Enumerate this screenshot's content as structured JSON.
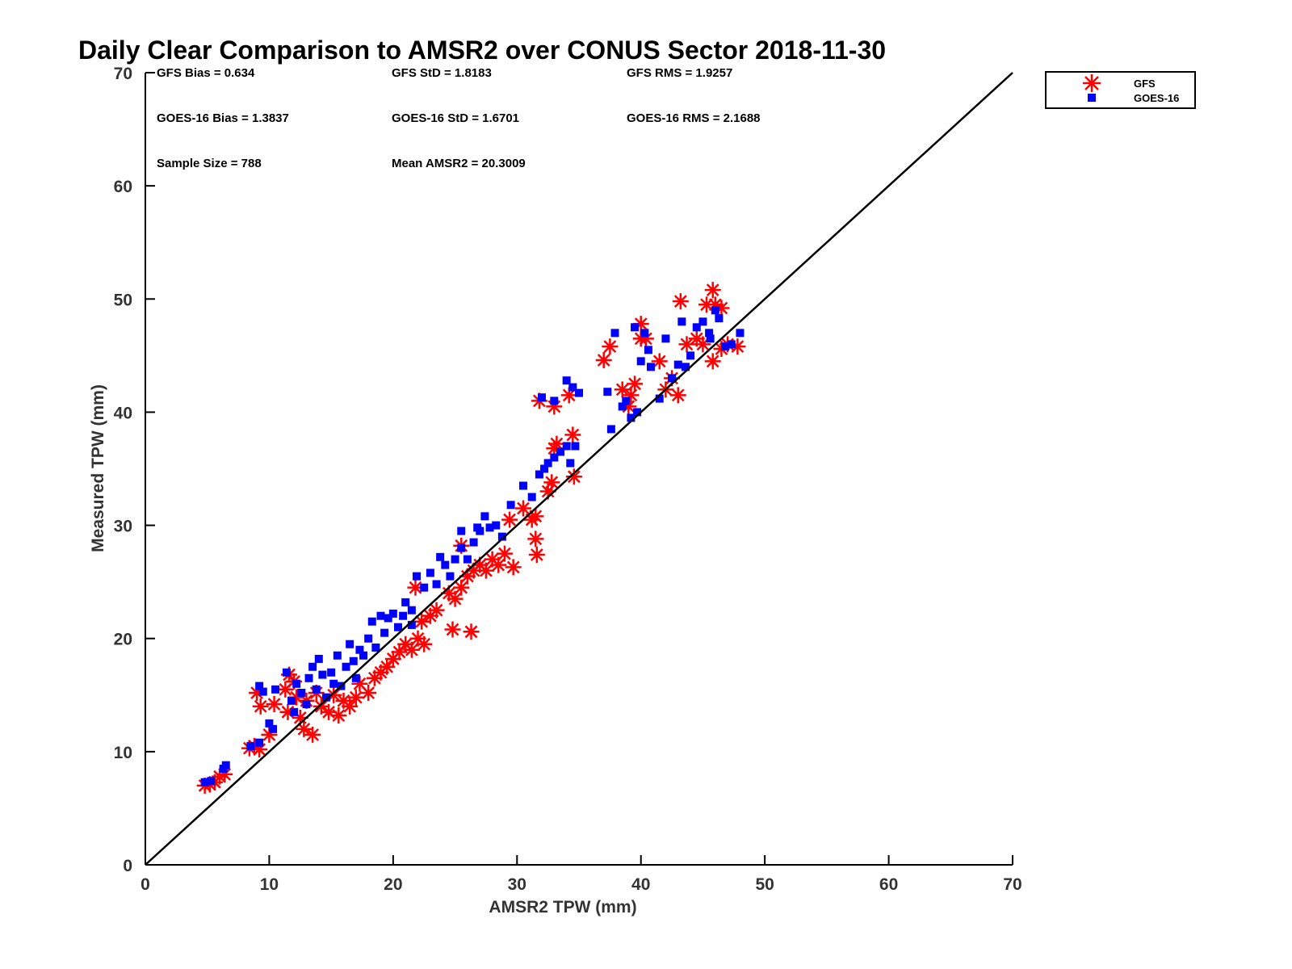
{
  "chart_data": {
    "type": "scatter",
    "title": "Daily Clear Comparison to AMSR2 over CONUS Sector 2018-11-30",
    "xlabel": "AMSR2 TPW (mm)",
    "ylabel": "Measured TPW (mm)",
    "xlim": [
      0,
      70
    ],
    "ylim": [
      0,
      70
    ],
    "xticks": [
      "0",
      "10",
      "20",
      "30",
      "40",
      "50",
      "60",
      "70"
    ],
    "yticks": [
      "0",
      "10",
      "20",
      "30",
      "40",
      "50",
      "60",
      "70"
    ],
    "grid": false,
    "reference_line": {
      "from": [
        0,
        0
      ],
      "to": [
        70,
        70
      ],
      "color": "#000000"
    },
    "legend_position": "outside-top-right",
    "stats": {
      "gfs_bias": "GFS Bias = 0.634",
      "gfs_std": "GFS StD = 1.8183",
      "gfs_rms": "GFS RMS = 1.9257",
      "goes_bias": "GOES-16 Bias = 1.3837",
      "goes_std": "GOES-16 StD = 1.6701",
      "goes_rms": "GOES-16 RMS = 2.1688",
      "sample_size": "Sample Size = 788",
      "mean_amsr2": "Mean AMSR2 = 20.3009"
    },
    "series": [
      {
        "name": "GFS",
        "marker": "asterisk",
        "color": "#ff0000",
        "points": [
          [
            4.8,
            7.0
          ],
          [
            5.2,
            7.1
          ],
          [
            5.6,
            7.3
          ],
          [
            6.0,
            7.8
          ],
          [
            6.4,
            8.0
          ],
          [
            8.4,
            10.3
          ],
          [
            8.8,
            10.5
          ],
          [
            9.2,
            10.2
          ],
          [
            9.0,
            15.2
          ],
          [
            9.3,
            14.0
          ],
          [
            10.0,
            11.5
          ],
          [
            10.4,
            14.2
          ],
          [
            11.3,
            15.5
          ],
          [
            11.6,
            16.8
          ],
          [
            12.0,
            16.2
          ],
          [
            11.5,
            13.5
          ],
          [
            12.2,
            14.8
          ],
          [
            12.5,
            13.0
          ],
          [
            12.8,
            12.0
          ],
          [
            13.5,
            11.5
          ],
          [
            13.0,
            14.5
          ],
          [
            13.8,
            15.2
          ],
          [
            14.2,
            14.0
          ],
          [
            14.8,
            13.5
          ],
          [
            15.2,
            15.0
          ],
          [
            15.6,
            13.2
          ],
          [
            16.0,
            14.5
          ],
          [
            16.5,
            14.0
          ],
          [
            17.0,
            14.8
          ],
          [
            17.3,
            16.0
          ],
          [
            18.0,
            15.2
          ],
          [
            18.5,
            16.5
          ],
          [
            19.0,
            17.0
          ],
          [
            19.5,
            17.5
          ],
          [
            20.0,
            18.2
          ],
          [
            20.5,
            18.8
          ],
          [
            21.0,
            19.5
          ],
          [
            21.5,
            19.0
          ],
          [
            22.0,
            20.0
          ],
          [
            22.5,
            19.5
          ],
          [
            22.3,
            21.5
          ],
          [
            23.0,
            22.0
          ],
          [
            23.5,
            22.5
          ],
          [
            21.8,
            24.5
          ],
          [
            24.5,
            24.0
          ],
          [
            25.0,
            23.5
          ],
          [
            24.8,
            20.8
          ],
          [
            26.3,
            20.6
          ],
          [
            25.5,
            24.5
          ],
          [
            26.0,
            25.5
          ],
          [
            26.5,
            26.0
          ],
          [
            27.0,
            26.5
          ],
          [
            27.5,
            26.0
          ],
          [
            28.0,
            27.0
          ],
          [
            28.5,
            26.5
          ],
          [
            29.7,
            26.3
          ],
          [
            29.0,
            27.5
          ],
          [
            25.5,
            28.2
          ],
          [
            29.4,
            30.5
          ],
          [
            30.5,
            31.5
          ],
          [
            31.2,
            30.5
          ],
          [
            31.5,
            28.8
          ],
          [
            31.6,
            27.4
          ],
          [
            31.5,
            30.8
          ],
          [
            32.5,
            33.0
          ],
          [
            32.8,
            33.8
          ],
          [
            33.2,
            37.2
          ],
          [
            33.0,
            36.8
          ],
          [
            33.0,
            40.5
          ],
          [
            31.8,
            41.0
          ],
          [
            34.2,
            41.5
          ],
          [
            34.5,
            38.0
          ],
          [
            34.6,
            34.3
          ],
          [
            37.0,
            44.6
          ],
          [
            37.5,
            45.8
          ],
          [
            38.5,
            42.0
          ],
          [
            39.0,
            40.5
          ],
          [
            39.2,
            41.5
          ],
          [
            39.5,
            42.5
          ],
          [
            40.0,
            46.5
          ],
          [
            40.0,
            47.8
          ],
          [
            40.4,
            46.5
          ],
          [
            41.5,
            44.5
          ],
          [
            42.0,
            42.0
          ],
          [
            42.5,
            43.0
          ],
          [
            43.0,
            41.5
          ],
          [
            43.2,
            49.8
          ],
          [
            43.7,
            46.0
          ],
          [
            44.5,
            46.5
          ],
          [
            45.0,
            46.0
          ],
          [
            45.3,
            49.5
          ],
          [
            45.8,
            50.8
          ],
          [
            46.0,
            49.5
          ],
          [
            46.5,
            49.2
          ],
          [
            45.8,
            44.5
          ],
          [
            47.0,
            46.0
          ],
          [
            47.8,
            45.8
          ],
          [
            46.5,
            45.6
          ]
        ]
      },
      {
        "name": "GOES-16",
        "marker": "square",
        "color": "#0000ff",
        "points": [
          [
            4.8,
            7.3
          ],
          [
            5.3,
            7.4
          ],
          [
            6.3,
            8.5
          ],
          [
            6.5,
            8.8
          ],
          [
            8.5,
            10.5
          ],
          [
            9.2,
            10.8
          ],
          [
            9.2,
            15.8
          ],
          [
            9.5,
            15.3
          ],
          [
            10.0,
            12.5
          ],
          [
            10.3,
            12.0
          ],
          [
            10.5,
            15.5
          ],
          [
            11.4,
            17.0
          ],
          [
            11.8,
            14.5
          ],
          [
            12.0,
            13.5
          ],
          [
            12.2,
            16.0
          ],
          [
            12.6,
            15.2
          ],
          [
            13.0,
            14.2
          ],
          [
            13.2,
            16.5
          ],
          [
            13.5,
            17.5
          ],
          [
            13.8,
            15.5
          ],
          [
            14.0,
            18.2
          ],
          [
            14.3,
            16.8
          ],
          [
            14.6,
            14.8
          ],
          [
            15.0,
            17.0
          ],
          [
            15.2,
            16.0
          ],
          [
            15.5,
            18.5
          ],
          [
            15.8,
            15.8
          ],
          [
            16.2,
            17.5
          ],
          [
            16.5,
            19.5
          ],
          [
            16.8,
            18.0
          ],
          [
            17.0,
            16.5
          ],
          [
            17.3,
            19.0
          ],
          [
            17.6,
            18.5
          ],
          [
            18.0,
            20.0
          ],
          [
            18.3,
            21.5
          ],
          [
            18.6,
            19.2
          ],
          [
            19.0,
            22.0
          ],
          [
            19.3,
            20.5
          ],
          [
            19.6,
            21.8
          ],
          [
            20.0,
            22.2
          ],
          [
            20.4,
            21.0
          ],
          [
            20.8,
            22.0
          ],
          [
            21.0,
            23.2
          ],
          [
            21.5,
            22.5
          ],
          [
            21.5,
            21.2
          ],
          [
            21.9,
            25.5
          ],
          [
            22.5,
            24.5
          ],
          [
            23.0,
            25.8
          ],
          [
            23.5,
            24.8
          ],
          [
            23.8,
            27.2
          ],
          [
            24.2,
            26.5
          ],
          [
            24.6,
            25.5
          ],
          [
            25.0,
            27.0
          ],
          [
            25.5,
            28.0
          ],
          [
            26.0,
            27.0
          ],
          [
            26.5,
            28.5
          ],
          [
            27.0,
            29.5
          ],
          [
            27.4,
            30.8
          ],
          [
            27.8,
            29.8
          ],
          [
            28.3,
            30.0
          ],
          [
            28.8,
            29.0
          ],
          [
            25.5,
            29.5
          ],
          [
            26.8,
            29.8
          ],
          [
            29.5,
            31.8
          ],
          [
            30.5,
            33.5
          ],
          [
            31.2,
            32.5
          ],
          [
            31.8,
            34.5
          ],
          [
            32.2,
            35.0
          ],
          [
            32.5,
            35.5
          ],
          [
            33.0,
            36.0
          ],
          [
            33.5,
            36.5
          ],
          [
            34.0,
            37.0
          ],
          [
            34.3,
            35.5
          ],
          [
            34.7,
            37.0
          ],
          [
            32.0,
            41.3
          ],
          [
            33.0,
            41.0
          ],
          [
            34.0,
            42.8
          ],
          [
            34.5,
            42.2
          ],
          [
            35.0,
            41.7
          ],
          [
            37.3,
            41.8
          ],
          [
            37.6,
            38.5
          ],
          [
            37.9,
            47.0
          ],
          [
            38.5,
            40.5
          ],
          [
            38.8,
            41.0
          ],
          [
            39.2,
            39.5
          ],
          [
            39.7,
            40.0
          ],
          [
            39.5,
            47.5
          ],
          [
            40.0,
            44.5
          ],
          [
            40.3,
            47.0
          ],
          [
            40.6,
            45.5
          ],
          [
            40.8,
            44.0
          ],
          [
            41.5,
            41.2
          ],
          [
            42.0,
            46.5
          ],
          [
            42.5,
            43.0
          ],
          [
            43.0,
            44.2
          ],
          [
            43.3,
            48.0
          ],
          [
            43.6,
            44.0
          ],
          [
            44.0,
            45.0
          ],
          [
            44.5,
            47.5
          ],
          [
            45.0,
            48.0
          ],
          [
            45.5,
            47.0
          ],
          [
            45.6,
            46.5
          ],
          [
            46.0,
            49.0
          ],
          [
            46.3,
            48.3
          ],
          [
            46.8,
            45.8
          ],
          [
            47.3,
            46.0
          ],
          [
            48.0,
            47.0
          ]
        ]
      }
    ]
  }
}
